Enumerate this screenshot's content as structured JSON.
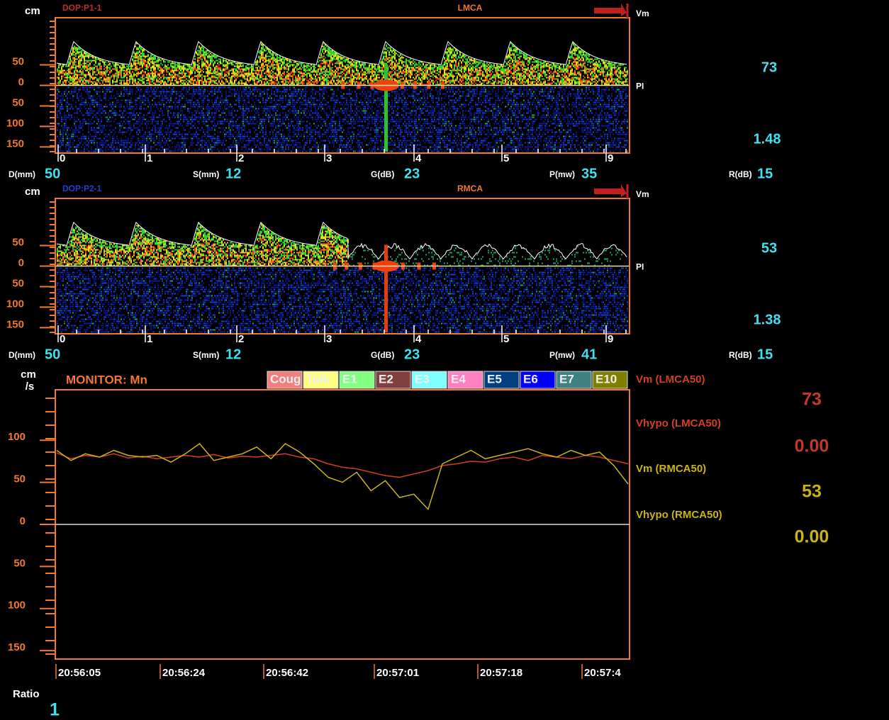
{
  "panels": [
    {
      "unit": "cm",
      "probe": "DOP:P1-1",
      "vessel": "LMCA",
      "vm_label": "Vm",
      "pi_label": "PI",
      "vm": 73,
      "pi": 1.48,
      "ylim": [
        -165,
        165
      ],
      "yticks": [
        50,
        0,
        {
          "value": -50,
          "label": "50"
        },
        {
          "value": -100,
          "label": "100"
        },
        {
          "value": -150,
          "label": "150"
        }
      ],
      "time_labels": [
        "0",
        "1",
        "2",
        "3",
        "4",
        "5",
        "9"
      ],
      "params": [
        {
          "label": "D(mm)",
          "value": 50
        },
        {
          "label": "S(mm)",
          "value": 12
        },
        {
          "label": "G(dB)",
          "value": 23
        },
        {
          "label": "P(mw)",
          "value": 35
        },
        {
          "label": "R(dB)",
          "value": 15
        }
      ]
    },
    {
      "unit": "cm",
      "probe": "DOP:P2-1",
      "vessel": "RMCA",
      "vm_label": "Vm",
      "pi_label": "PI",
      "vm": 53,
      "pi": 1.38,
      "ylim": [
        -165,
        165
      ],
      "yticks": [
        50,
        0,
        {
          "value": -50,
          "label": "50"
        },
        {
          "value": -100,
          "label": "100"
        },
        {
          "value": -150,
          "label": "150"
        }
      ],
      "time_labels": [
        "0",
        "1",
        "2",
        "3",
        "4",
        "5",
        "9"
      ],
      "params": [
        {
          "label": "D(mm)",
          "value": 50
        },
        {
          "label": "S(mm)",
          "value": 12
        },
        {
          "label": "G(dB)",
          "value": 23
        },
        {
          "label": "P(mw)",
          "value": 41
        },
        {
          "label": "R(dB)",
          "value": 15
        }
      ]
    }
  ],
  "monitor": {
    "unit_top": "cm",
    "unit_bottom": "/s",
    "title": "MONITOR: Mn",
    "events": [
      {
        "name": "Coug",
        "color": "#f08080"
      },
      {
        "name": "Talk",
        "color": "#ffff80"
      },
      {
        "name": "E1",
        "color": "#80ff80"
      },
      {
        "name": "E2",
        "color": "#804040"
      },
      {
        "name": "E3",
        "color": "#80ffff"
      },
      {
        "name": "E4",
        "color": "#ff80c0"
      },
      {
        "name": "E5",
        "color": "#004080"
      },
      {
        "name": "E6",
        "color": "#0000ff"
      },
      {
        "name": "E7",
        "color": "#408080"
      },
      {
        "name": "E10",
        "color": "#808000"
      }
    ],
    "ylim": [
      -160,
      160
    ],
    "yticks": [
      100,
      50,
      0,
      {
        "value": -50,
        "label": "50"
      },
      {
        "value": -100,
        "label": "100"
      },
      {
        "value": -150,
        "label": "150"
      }
    ],
    "times": [
      "20:56:05",
      "20:56:24",
      "20:56:42",
      "20:57:01",
      "20:57:18",
      "20:57:4"
    ],
    "series": [
      {
        "name": "Vm (LMCA50)",
        "color": "#d2401e",
        "current": 73,
        "values": [
          85,
          78,
          82,
          80,
          84,
          79,
          81,
          78,
          80,
          82,
          80,
          83,
          79,
          81,
          80,
          82,
          84,
          80,
          78,
          72,
          68,
          66,
          62,
          58,
          56,
          60,
          64,
          70,
          72,
          75,
          74,
          78,
          80,
          76,
          82,
          80,
          78,
          82,
          80,
          76,
          72
        ]
      },
      {
        "name": "Vhypo (LMCA50)",
        "color": "#d2401e",
        "current": "0.00"
      },
      {
        "name": "Vm (RMCA50)",
        "color": "#c8b414",
        "current": 53,
        "values": [
          88,
          76,
          84,
          80,
          88,
          82,
          80,
          82,
          74,
          84,
          96,
          76,
          80,
          84,
          92,
          78,
          96,
          86,
          72,
          56,
          50,
          62,
          40,
          52,
          32,
          36,
          18,
          72,
          80,
          88,
          78,
          82,
          86,
          90,
          84,
          80,
          88,
          82,
          86,
          70,
          48
        ]
      },
      {
        "name": "Vhypo (RMCA50)",
        "color": "#c8b414",
        "current": "0.00"
      }
    ]
  },
  "ratio": {
    "label": "Ratio",
    "value": 1
  }
}
